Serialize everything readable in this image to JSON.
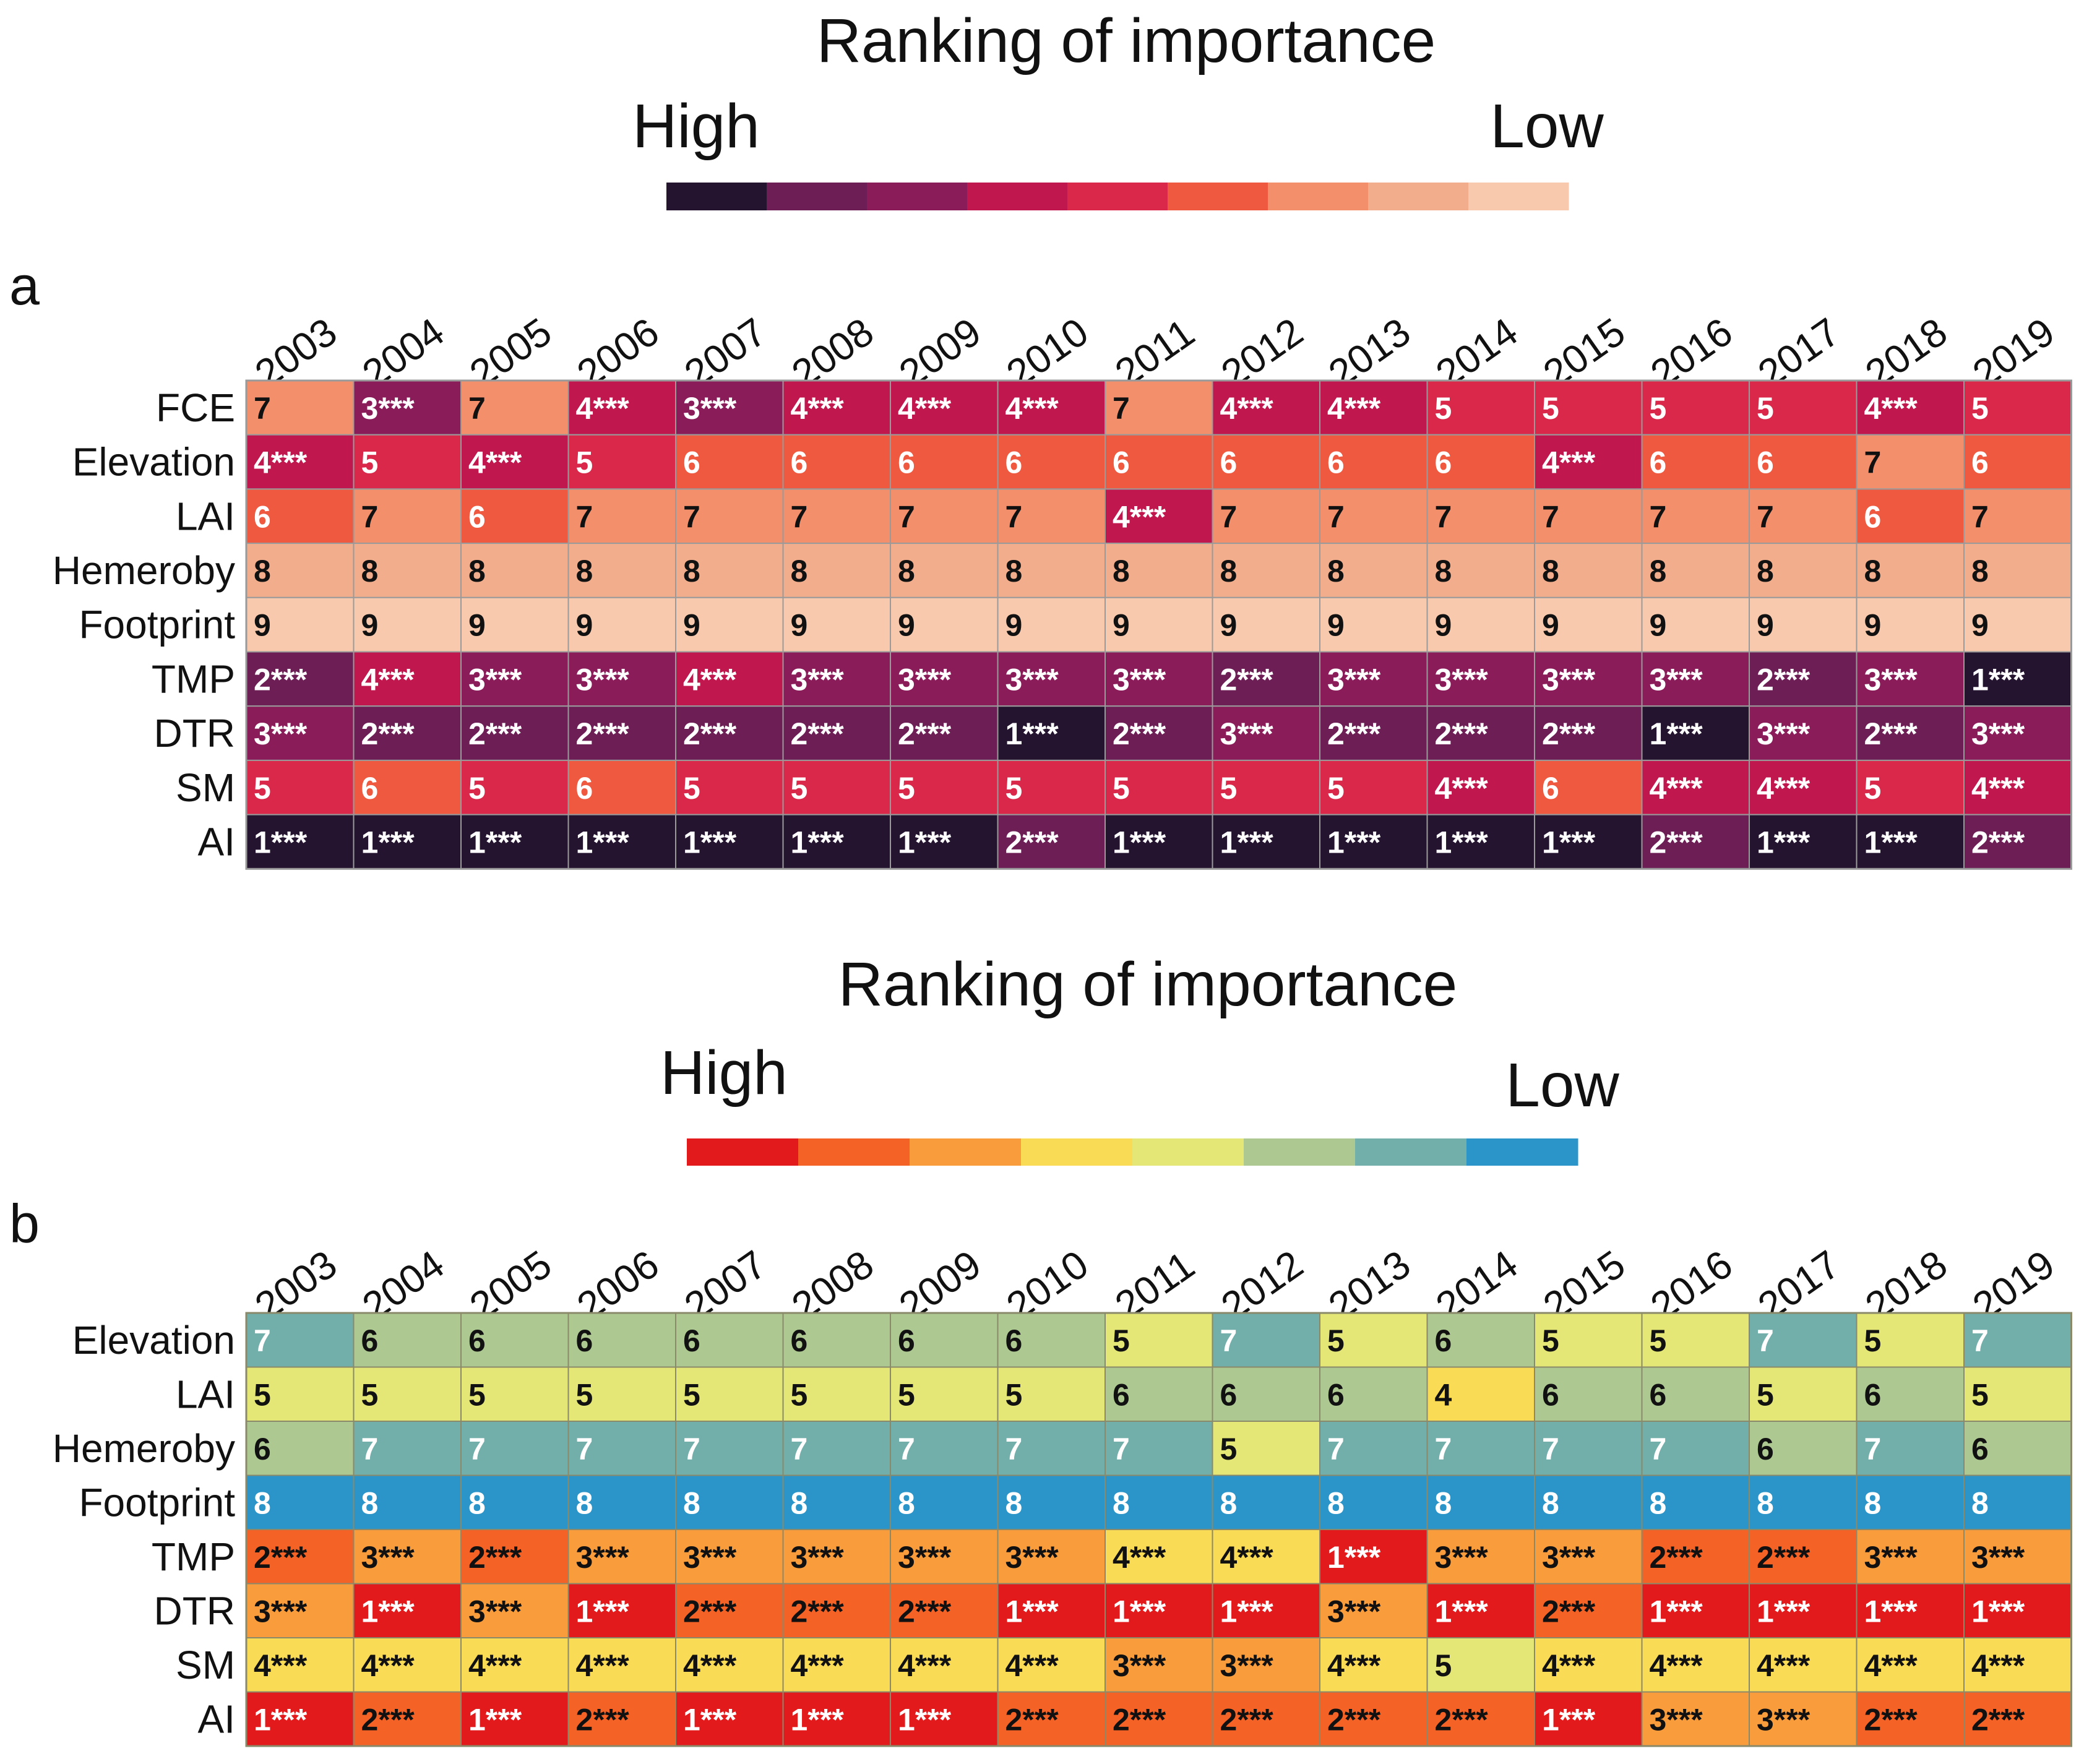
{
  "chart_data": [
    {
      "type": "heatmap",
      "panel": "a",
      "title": "Ranking of importance",
      "legend": {
        "high_label": "High",
        "low_label": "Low"
      },
      "colors": {
        "1": "#241430",
        "2": "#6c1e55",
        "3": "#8a1c5a",
        "4": "#c0174f",
        "5": "#d9284a",
        "6": "#ef5940",
        "7": "#f38f6b",
        "8": "#f2ae8c",
        "9": "#f8c9ad"
      },
      "light_text_ranks": [
        1,
        2,
        3,
        4,
        5,
        6
      ],
      "years": [
        "2003",
        "2004",
        "2005",
        "2006",
        "2007",
        "2008",
        "2009",
        "2010",
        "2011",
        "2012",
        "2013",
        "2014",
        "2015",
        "2016",
        "2017",
        "2018",
        "2019"
      ],
      "rows": [
        "FCE",
        "Elevation",
        "LAI",
        "Hemeroby",
        "Footprint",
        "TMP",
        "DTR",
        "SM",
        "AI"
      ],
      "values": [
        [
          7,
          3,
          7,
          4,
          3,
          4,
          4,
          4,
          7,
          4,
          4,
          5,
          5,
          5,
          5,
          4,
          5
        ],
        [
          4,
          5,
          4,
          5,
          6,
          6,
          6,
          6,
          6,
          6,
          6,
          6,
          4,
          6,
          6,
          7,
          6
        ],
        [
          6,
          7,
          6,
          7,
          7,
          7,
          7,
          7,
          4,
          7,
          7,
          7,
          7,
          7,
          7,
          6,
          7
        ],
        [
          8,
          8,
          8,
          8,
          8,
          8,
          8,
          8,
          8,
          8,
          8,
          8,
          8,
          8,
          8,
          8,
          8
        ],
        [
          9,
          9,
          9,
          9,
          9,
          9,
          9,
          9,
          9,
          9,
          9,
          9,
          9,
          9,
          9,
          9,
          9
        ],
        [
          2,
          4,
          3,
          3,
          4,
          3,
          3,
          3,
          3,
          2,
          3,
          3,
          3,
          3,
          2,
          3,
          1
        ],
        [
          3,
          2,
          2,
          2,
          2,
          2,
          2,
          1,
          2,
          3,
          2,
          2,
          2,
          1,
          3,
          2,
          3
        ],
        [
          5,
          6,
          5,
          6,
          5,
          5,
          5,
          5,
          5,
          5,
          5,
          4,
          6,
          4,
          4,
          5,
          4
        ],
        [
          1,
          1,
          1,
          1,
          1,
          1,
          1,
          2,
          1,
          1,
          1,
          1,
          1,
          2,
          1,
          1,
          2
        ]
      ],
      "labels": [
        [
          "7",
          "3***",
          "7",
          "4***",
          "3***",
          "4***",
          "4***",
          "4***",
          "7",
          "4***",
          "4***",
          "5",
          "5",
          "5",
          "5",
          "4***",
          "5"
        ],
        [
          "4***",
          "5",
          "4***",
          "5",
          "6",
          "6",
          "6",
          "6",
          "6",
          "6",
          "6",
          "6",
          "4***",
          "6",
          "6",
          "7",
          "6"
        ],
        [
          "6",
          "7",
          "6",
          "7",
          "7",
          "7",
          "7",
          "7",
          "4***",
          "7",
          "7",
          "7",
          "7",
          "7",
          "7",
          "6",
          "7"
        ],
        [
          "8",
          "8",
          "8",
          "8",
          "8",
          "8",
          "8",
          "8",
          "8",
          "8",
          "8",
          "8",
          "8",
          "8",
          "8",
          "8",
          "8"
        ],
        [
          "9",
          "9",
          "9",
          "9",
          "9",
          "9",
          "9",
          "9",
          "9",
          "9",
          "9",
          "9",
          "9",
          "9",
          "9",
          "9",
          "9"
        ],
        [
          "2***",
          "4***",
          "3***",
          "3***",
          "4***",
          "3***",
          "3***",
          "3***",
          "3***",
          "2***",
          "3***",
          "3***",
          "3***",
          "3***",
          "2***",
          "3***",
          "1***"
        ],
        [
          "3***",
          "2***",
          "2***",
          "2***",
          "2***",
          "2***",
          "2***",
          "1***",
          "2***",
          "3***",
          "2***",
          "2***",
          "2***",
          "1***",
          "3***",
          "2***",
          "3***"
        ],
        [
          "5",
          "6",
          "5",
          "6",
          "5",
          "5",
          "5",
          "5",
          "5",
          "5",
          "5",
          "4***",
          "6",
          "4***",
          "4***",
          "5",
          "4***"
        ],
        [
          "1***",
          "1***",
          "1***",
          "1***",
          "1***",
          "1***",
          "1***",
          "2***",
          "1***",
          "1***",
          "1***",
          "1***",
          "1***",
          "2***",
          "1***",
          "1***",
          "2***"
        ]
      ]
    },
    {
      "type": "heatmap",
      "panel": "b",
      "title": "Ranking of importance",
      "legend": {
        "high_label": "High",
        "low_label": "Low"
      },
      "colors": {
        "1": "#e31a1c",
        "2": "#f46325",
        "3": "#f99c3b",
        "4": "#fadb55",
        "5": "#e4e775",
        "6": "#adc891",
        "7": "#72aeaa",
        "8": "#2b95c9"
      },
      "light_text_ranks": [
        1,
        7,
        8
      ],
      "years": [
        "2003",
        "2004",
        "2005",
        "2006",
        "2007",
        "2008",
        "2009",
        "2010",
        "2011",
        "2012",
        "2013",
        "2014",
        "2015",
        "2016",
        "2017",
        "2018",
        "2019"
      ],
      "rows": [
        "Elevation",
        "LAI",
        "Hemeroby",
        "Footprint",
        "TMP",
        "DTR",
        "SM",
        "AI"
      ],
      "values": [
        [
          7,
          6,
          6,
          6,
          6,
          6,
          6,
          6,
          5,
          7,
          5,
          6,
          5,
          5,
          7,
          5,
          7
        ],
        [
          5,
          5,
          5,
          5,
          5,
          5,
          5,
          5,
          6,
          6,
          6,
          4,
          6,
          6,
          5,
          6,
          5
        ],
        [
          6,
          7,
          7,
          7,
          7,
          7,
          7,
          7,
          7,
          5,
          7,
          7,
          7,
          7,
          6,
          7,
          6
        ],
        [
          8,
          8,
          8,
          8,
          8,
          8,
          8,
          8,
          8,
          8,
          8,
          8,
          8,
          8,
          8,
          8,
          8
        ],
        [
          2,
          3,
          2,
          3,
          3,
          3,
          3,
          3,
          4,
          4,
          1,
          3,
          3,
          2,
          2,
          3,
          3
        ],
        [
          3,
          1,
          3,
          1,
          2,
          2,
          2,
          1,
          1,
          1,
          3,
          1,
          2,
          1,
          1,
          1,
          1
        ],
        [
          4,
          4,
          4,
          4,
          4,
          4,
          4,
          4,
          3,
          3,
          4,
          5,
          4,
          4,
          4,
          4,
          4
        ],
        [
          1,
          2,
          1,
          2,
          1,
          1,
          1,
          2,
          2,
          2,
          2,
          2,
          1,
          3,
          3,
          2,
          2
        ]
      ],
      "labels": [
        [
          "7",
          "6",
          "6",
          "6",
          "6",
          "6",
          "6",
          "6",
          "5",
          "7",
          "5",
          "6",
          "5",
          "5",
          "7",
          "5",
          "7"
        ],
        [
          "5",
          "5",
          "5",
          "5",
          "5",
          "5",
          "5",
          "5",
          "6",
          "6",
          "6",
          "4",
          "6",
          "6",
          "5",
          "6",
          "5"
        ],
        [
          "6",
          "7",
          "7",
          "7",
          "7",
          "7",
          "7",
          "7",
          "7",
          "5",
          "7",
          "7",
          "7",
          "7",
          "6",
          "7",
          "6"
        ],
        [
          "8",
          "8",
          "8",
          "8",
          "8",
          "8",
          "8",
          "8",
          "8",
          "8",
          "8",
          "8",
          "8",
          "8",
          "8",
          "8",
          "8"
        ],
        [
          "2***",
          "3***",
          "2***",
          "3***",
          "3***",
          "3***",
          "3***",
          "3***",
          "4***",
          "4***",
          "1***",
          "3***",
          "3***",
          "2***",
          "2***",
          "3***",
          "3***"
        ],
        [
          "3***",
          "1***",
          "3***",
          "1***",
          "2***",
          "2***",
          "2***",
          "1***",
          "1***",
          "1***",
          "3***",
          "1***",
          "2***",
          "1***",
          "1***",
          "1***",
          "1***"
        ],
        [
          "4***",
          "4***",
          "4***",
          "4***",
          "4***",
          "4***",
          "4***",
          "4***",
          "3***",
          "3***",
          "4***",
          "5",
          "4***",
          "4***",
          "4***",
          "4***",
          "4***"
        ],
        [
          "1***",
          "2***",
          "1***",
          "2***",
          "1***",
          "1***",
          "1***",
          "2***",
          "2***",
          "2***",
          "2***",
          "2***",
          "1***",
          "3***",
          "3***",
          "2***",
          "2***"
        ]
      ]
    }
  ]
}
